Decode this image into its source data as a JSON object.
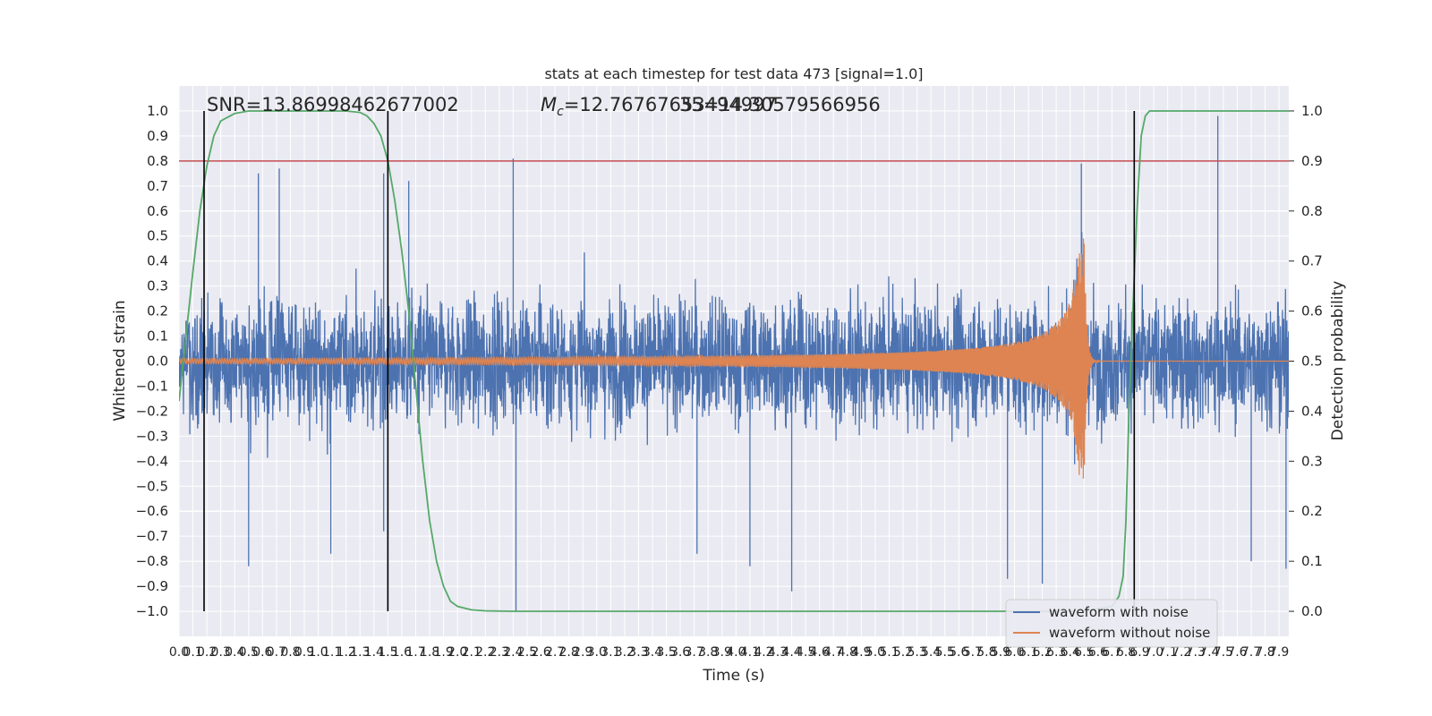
{
  "chart_data": {
    "type": "line",
    "title": "stats at each timestep for test data 473 [signal=1.0]",
    "xlabel": "Time (s)",
    "ylabel": "Whitened strain",
    "y2label": "Detection probability",
    "xlim": [
      0.0,
      7.97
    ],
    "ylim": [
      -1.1,
      1.1
    ],
    "y2lim": [
      -0.05,
      1.05
    ],
    "x_ticks": [
      0.0,
      0.1,
      0.2,
      0.3,
      0.4,
      0.5,
      0.6,
      0.7,
      0.8,
      0.9,
      1.0,
      1.1,
      1.2,
      1.3,
      1.4,
      1.5,
      1.6,
      1.7,
      1.8,
      1.9,
      2.0,
      2.1,
      2.2,
      2.3,
      2.4,
      2.5,
      2.6,
      2.7,
      2.8,
      2.9,
      3.0,
      3.1,
      3.2,
      3.3,
      3.4,
      3.5,
      3.6,
      3.7,
      3.8,
      3.9,
      4.0,
      4.1,
      4.2,
      4.3,
      4.4,
      4.5,
      4.6,
      4.7,
      4.8,
      4.9,
      5.0,
      5.1,
      5.2,
      5.3,
      5.4,
      5.5,
      5.6,
      5.7,
      5.8,
      5.9,
      6.0,
      6.1,
      6.2,
      6.3,
      6.4,
      6.5,
      6.6,
      6.7,
      6.8,
      6.9,
      7.0,
      7.1,
      7.2,
      7.3,
      7.4,
      7.5,
      7.6,
      7.7,
      7.8,
      7.9
    ],
    "y_ticks": [
      -1.0,
      -0.9,
      -0.8,
      -0.7,
      -0.6,
      -0.5,
      -0.4,
      -0.3,
      -0.2,
      -0.1,
      0.0,
      0.1,
      0.2,
      0.3,
      0.4,
      0.5,
      0.6,
      0.7,
      0.8,
      0.9,
      1.0
    ],
    "y2_ticks": [
      0.0,
      0.1,
      0.2,
      0.3,
      0.4,
      0.5,
      0.6,
      0.7,
      0.8,
      0.9,
      1.0
    ],
    "annotations": {
      "snr": "SNR=13.86998462677002",
      "mc_symbol": "M",
      "mc_sub": "c",
      "mc_value": "=12.76767653494997",
      "mc_overlap": "35=14.30579566956"
    },
    "threshold": {
      "y2": 0.9,
      "color": "#c44e52"
    },
    "vlines": [
      0.18,
      1.5,
      6.86
    ],
    "noisy_waveform": {
      "name": "waveform with noise",
      "color": "#4c72b0",
      "typical_range": [
        -0.45,
        0.45
      ],
      "extremes": [
        {
          "x": 0.5,
          "y": -0.82
        },
        {
          "x": 0.57,
          "y": 0.75
        },
        {
          "x": 0.72,
          "y": 0.77
        },
        {
          "x": 1.09,
          "y": -0.77
        },
        {
          "x": 1.47,
          "y": 0.75
        },
        {
          "x": 1.47,
          "y": -0.68
        },
        {
          "x": 1.65,
          "y": 0.72
        },
        {
          "x": 2.4,
          "y": 0.81
        },
        {
          "x": 2.42,
          "y": -1.0
        },
        {
          "x": 3.72,
          "y": -0.77
        },
        {
          "x": 4.1,
          "y": -0.82
        },
        {
          "x": 4.4,
          "y": -0.92
        },
        {
          "x": 5.95,
          "y": -0.87
        },
        {
          "x": 6.2,
          "y": -0.89
        },
        {
          "x": 6.48,
          "y": 0.79
        },
        {
          "x": 7.46,
          "y": 0.98
        },
        {
          "x": 7.7,
          "y": -0.8
        },
        {
          "x": 7.95,
          "y": -0.83
        }
      ]
    },
    "clean_waveform": {
      "name": "waveform without noise",
      "color": "#dd8452",
      "initial_amplitude": 0.01,
      "merger_time": 6.5,
      "peak_amplitude": 0.5
    },
    "detection_probability": {
      "color": "#55a868",
      "x": [
        0.0,
        0.05,
        0.1,
        0.15,
        0.2,
        0.25,
        0.3,
        0.4,
        0.5,
        0.7,
        1.0,
        1.2,
        1.3,
        1.35,
        1.4,
        1.45,
        1.5,
        1.55,
        1.6,
        1.65,
        1.7,
        1.75,
        1.8,
        1.85,
        1.9,
        1.95,
        2.0,
        2.1,
        2.2,
        2.4,
        3.0,
        4.0,
        5.0,
        6.0,
        6.5,
        6.7,
        6.75,
        6.78,
        6.8,
        6.82,
        6.85,
        6.88,
        6.91,
        6.94,
        6.97,
        7.0,
        7.2,
        7.5,
        7.97
      ],
      "y": [
        0.42,
        0.55,
        0.68,
        0.8,
        0.89,
        0.95,
        0.98,
        0.995,
        1.0,
        1.0,
        1.0,
        1.0,
        0.997,
        0.99,
        0.975,
        0.95,
        0.9,
        0.82,
        0.72,
        0.6,
        0.45,
        0.3,
        0.18,
        0.1,
        0.05,
        0.02,
        0.01,
        0.003,
        0.001,
        0.0,
        0.0,
        0.0,
        0.0,
        0.0,
        0.0,
        0.01,
        0.03,
        0.07,
        0.18,
        0.38,
        0.6,
        0.8,
        0.95,
        0.99,
        1.0,
        1.0,
        1.0,
        1.0,
        1.0
      ]
    },
    "legend": {
      "placement": "lower-right"
    }
  }
}
